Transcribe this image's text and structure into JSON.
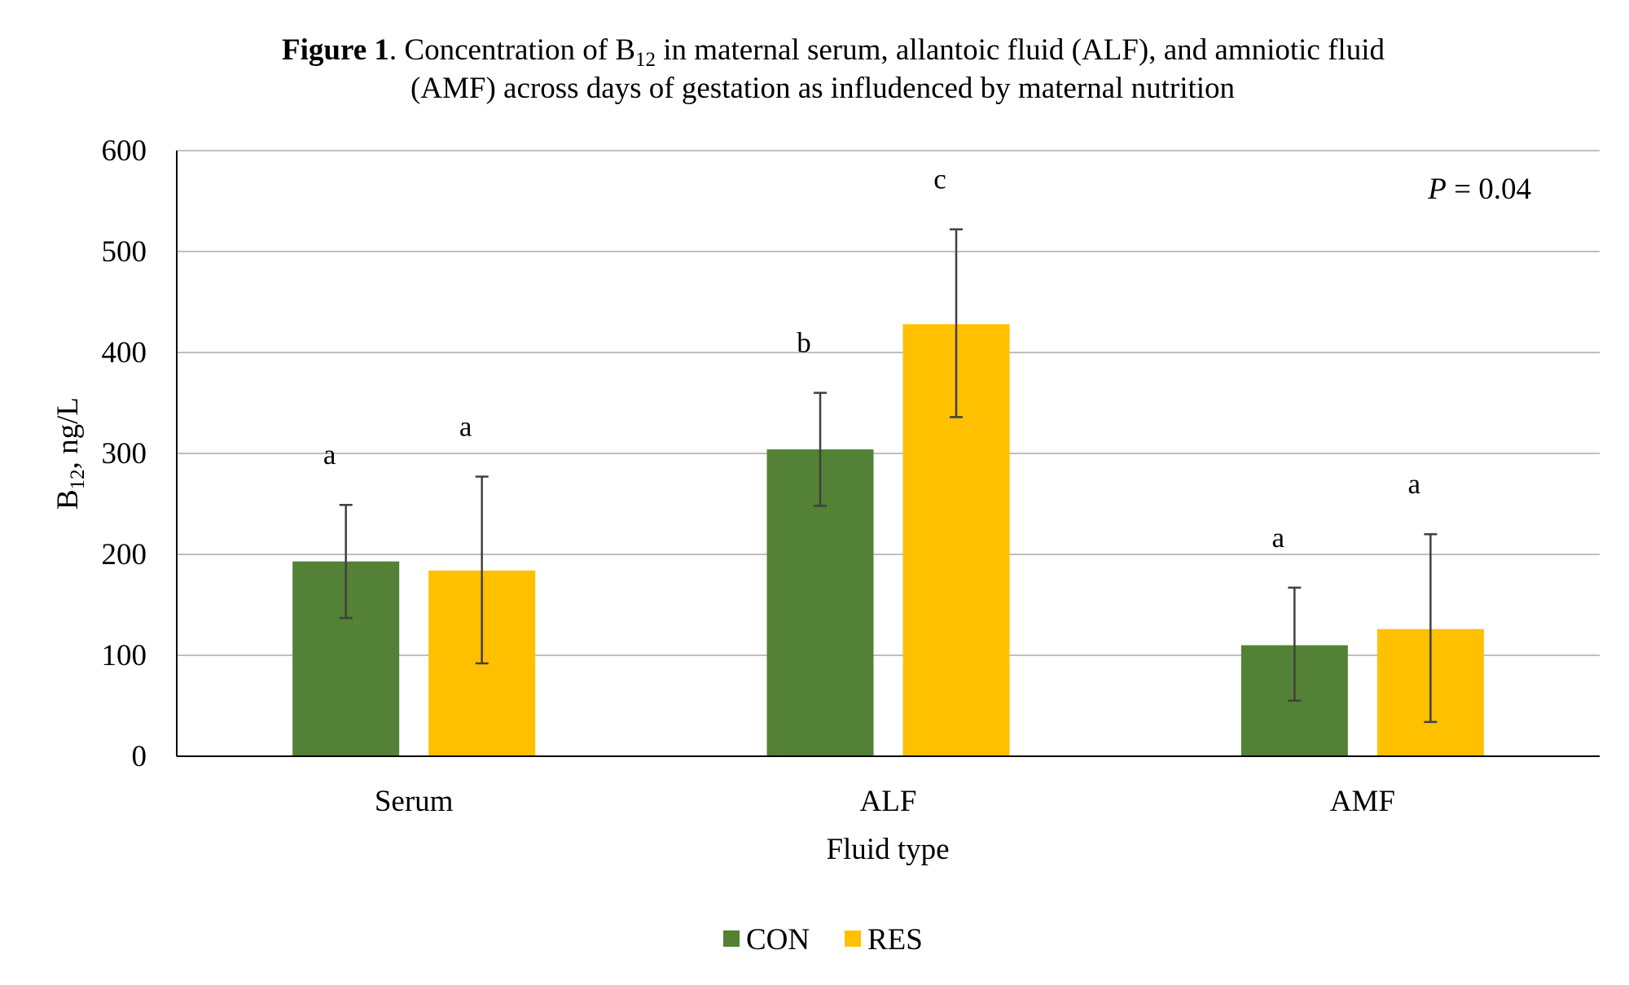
{
  "title": {
    "bold": "Figure 1",
    "line1_rest": ". Concentration of B",
    "line1_sub": "12",
    "line1_end": " in maternal serum, allantoic fluid (ALF), and amniotic fluid",
    "line2": "(AMF) across days of gestation as infludenced by maternal nutrition"
  },
  "annotation": {
    "p_symbol": "P",
    "p_rest": " = 0.04"
  },
  "colors": {
    "CON": "#538135",
    "RES": "#FFC000",
    "grid": "#bfbfbf",
    "axis": "#000000",
    "errorbar": "#404040"
  },
  "chart_data": {
    "type": "bar",
    "title": "Figure 1. Concentration of B12 in maternal serum, allantoic fluid (ALF), and amniotic fluid (AMF) across days of gestation as infludenced by maternal nutrition",
    "xlabel": "Fluid type",
    "ylabel": "B12, ng/L",
    "ylabel_main": "B",
    "ylabel_sub": "12",
    "ylabel_rest": ", ng/L",
    "ylim": [
      0,
      600
    ],
    "yticks": [
      0,
      100,
      200,
      300,
      400,
      500,
      600
    ],
    "grid": true,
    "legend_position": "bottom-center",
    "categories": [
      "Serum",
      "ALF",
      "AMF"
    ],
    "series": [
      {
        "name": "CON",
        "values": [
          193,
          304,
          110
        ],
        "error_low": [
          137,
          248,
          55
        ],
        "error_high": [
          249,
          360,
          167
        ],
        "letters": [
          "a",
          "b",
          "a"
        ]
      },
      {
        "name": "RES",
        "values": [
          184,
          428,
          126
        ],
        "error_low": [
          92,
          336,
          34
        ],
        "error_high": [
          277,
          522,
          220
        ],
        "letters": [
          "a",
          "c",
          "a"
        ]
      }
    ]
  }
}
